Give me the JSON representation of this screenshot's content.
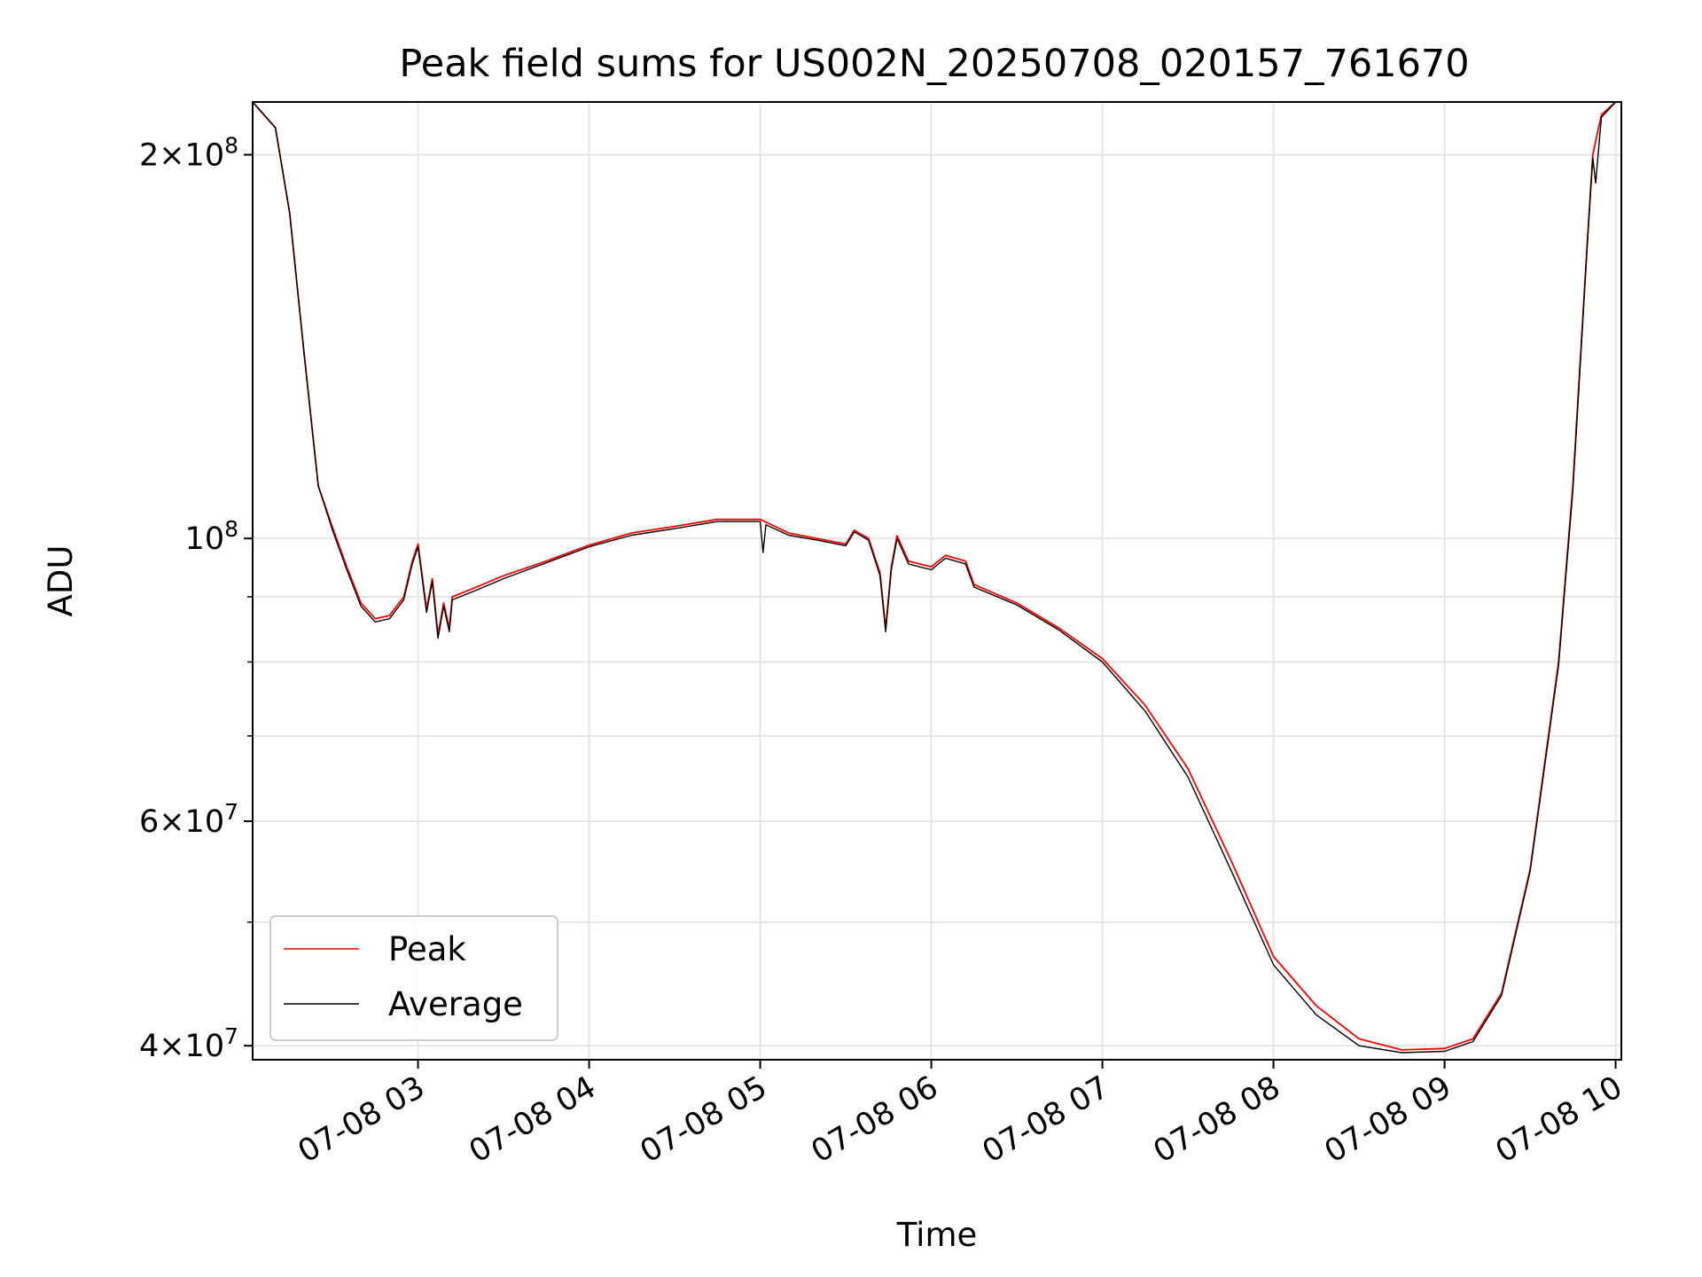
{
  "chart_data": {
    "type": "line",
    "title": "Peak field sums for US002N_20250708_020157_761670",
    "xlabel": "Time",
    "ylabel": "ADU",
    "x_unit": "date-hour",
    "xlim": [
      "07-08 02:02",
      "07-08 10:02"
    ],
    "ylim": [
      39000000,
      220000000
    ],
    "yscale": "log",
    "grid": true,
    "legend_position": "lower-left",
    "x_ticks": [
      {
        "value": "07-08 03:00",
        "label": "07-08 03"
      },
      {
        "value": "07-08 04:00",
        "label": "07-08 04"
      },
      {
        "value": "07-08 05:00",
        "label": "07-08 05"
      },
      {
        "value": "07-08 06:00",
        "label": "07-08 06"
      },
      {
        "value": "07-08 07:00",
        "label": "07-08 07"
      },
      {
        "value": "07-08 08:00",
        "label": "07-08 08"
      },
      {
        "value": "07-08 09:00",
        "label": "07-08 09"
      },
      {
        "value": "07-08 10:00",
        "label": "07-08 10"
      }
    ],
    "y_major_ticks": [
      {
        "value": 40000000,
        "mant": "4",
        "exp": "7"
      },
      {
        "value": 60000000,
        "mant": "6",
        "exp": "7"
      },
      {
        "value": 100000000,
        "mant": "",
        "exp": "8"
      },
      {
        "value": 200000000,
        "mant": "2",
        "exp": "8"
      }
    ],
    "y_minor_grid": [
      50000000,
      70000000,
      80000000,
      90000000
    ],
    "series": [
      {
        "name": "Peak",
        "color": "#ff0000",
        "points": [
          [
            "07-08 02:02",
            220000000
          ],
          [
            "07-08 02:10",
            210000000
          ],
          [
            "07-08 02:15",
            180000000
          ],
          [
            "07-08 02:20",
            140000000
          ],
          [
            "07-08 02:25",
            110000000
          ],
          [
            "07-08 02:30",
            102000000
          ],
          [
            "07-08 02:35",
            95000000
          ],
          [
            "07-08 02:40",
            89000000
          ],
          [
            "07-08 02:45",
            86500000
          ],
          [
            "07-08 02:50",
            87000000
          ],
          [
            "07-08 02:55",
            90000000
          ],
          [
            "07-08 02:58",
            96000000
          ],
          [
            "07-08 03:00",
            99000000
          ],
          [
            "07-08 03:03",
            88000000
          ],
          [
            "07-08 03:05",
            93000000
          ],
          [
            "07-08 03:07",
            84000000
          ],
          [
            "07-08 03:09",
            89000000
          ],
          [
            "07-08 03:11",
            85000000
          ],
          [
            "07-08 03:12",
            90000000
          ],
          [
            "07-08 03:20",
            91500000
          ],
          [
            "07-08 03:30",
            93500000
          ],
          [
            "07-08 03:45",
            96000000
          ],
          [
            "07-08 04:00",
            98800000
          ],
          [
            "07-08 04:15",
            101000000
          ],
          [
            "07-08 04:30",
            102200000
          ],
          [
            "07-08 04:45",
            103500000
          ],
          [
            "07-08 05:00",
            103500000
          ],
          [
            "07-08 05:10",
            101000000
          ],
          [
            "07-08 05:20",
            100000000
          ],
          [
            "07-08 05:30",
            99000000
          ],
          [
            "07-08 05:33",
            101500000
          ],
          [
            "07-08 05:38",
            100000000
          ],
          [
            "07-08 05:42",
            94000000
          ],
          [
            "07-08 05:44",
            85000000
          ],
          [
            "07-08 05:46",
            95000000
          ],
          [
            "07-08 05:48",
            100500000
          ],
          [
            "07-08 05:52",
            96000000
          ],
          [
            "07-08 06:00",
            95000000
          ],
          [
            "07-08 06:05",
            97000000
          ],
          [
            "07-08 06:12",
            96000000
          ],
          [
            "07-08 06:15",
            92000000
          ],
          [
            "07-08 06:30",
            89000000
          ],
          [
            "07-08 06:45",
            85000000
          ],
          [
            "07-08 07:00",
            80500000
          ],
          [
            "07-08 07:15",
            74000000
          ],
          [
            "07-08 07:30",
            66000000
          ],
          [
            "07-08 07:45",
            56000000
          ],
          [
            "07-08 08:00",
            47000000
          ],
          [
            "07-08 08:15",
            43000000
          ],
          [
            "07-08 08:30",
            40500000
          ],
          [
            "07-08 08:45",
            39700000
          ],
          [
            "07-08 09:00",
            39800000
          ],
          [
            "07-08 09:10",
            40500000
          ],
          [
            "07-08 09:20",
            44000000
          ],
          [
            "07-08 09:30",
            55000000
          ],
          [
            "07-08 09:40",
            80000000
          ],
          [
            "07-08 09:45",
            110000000
          ],
          [
            "07-08 09:50",
            170000000
          ],
          [
            "07-08 09:52",
            200000000
          ],
          [
            "07-08 09:55",
            215000000
          ],
          [
            "07-08 10:00",
            220000000
          ]
        ]
      },
      {
        "name": "Average",
        "color": "#000000",
        "points": [
          [
            "07-08 02:02",
            220000000
          ],
          [
            "07-08 02:10",
            210000000
          ],
          [
            "07-08 02:15",
            180000000
          ],
          [
            "07-08 02:20",
            140000000
          ],
          [
            "07-08 02:25",
            110000000
          ],
          [
            "07-08 02:30",
            101500000
          ],
          [
            "07-08 02:35",
            94500000
          ],
          [
            "07-08 02:40",
            88500000
          ],
          [
            "07-08 02:45",
            86000000
          ],
          [
            "07-08 02:50",
            86500000
          ],
          [
            "07-08 02:55",
            89500000
          ],
          [
            "07-08 02:58",
            95500000
          ],
          [
            "07-08 03:00",
            98500000
          ],
          [
            "07-08 03:03",
            87500000
          ],
          [
            "07-08 03:05",
            92500000
          ],
          [
            "07-08 03:07",
            83500000
          ],
          [
            "07-08 03:09",
            88500000
          ],
          [
            "07-08 03:11",
            84500000
          ],
          [
            "07-08 03:12",
            89500000
          ],
          [
            "07-08 03:20",
            91000000
          ],
          [
            "07-08 03:30",
            93000000
          ],
          [
            "07-08 03:45",
            95700000
          ],
          [
            "07-08 04:00",
            98500000
          ],
          [
            "07-08 04:15",
            100600000
          ],
          [
            "07-08 04:30",
            101800000
          ],
          [
            "07-08 04:45",
            103100000
          ],
          [
            "07-08 05:00",
            103100000
          ],
          [
            "07-08 05:01",
            97500000
          ],
          [
            "07-08 05:02",
            102500000
          ],
          [
            "07-08 05:10",
            100600000
          ],
          [
            "07-08 05:20",
            99700000
          ],
          [
            "07-08 05:30",
            98700000
          ],
          [
            "07-08 05:33",
            101200000
          ],
          [
            "07-08 05:38",
            99700000
          ],
          [
            "07-08 05:42",
            93500000
          ],
          [
            "07-08 05:44",
            84500000
          ],
          [
            "07-08 05:46",
            94500000
          ],
          [
            "07-08 05:48",
            100000000
          ],
          [
            "07-08 05:52",
            95500000
          ],
          [
            "07-08 06:00",
            94500000
          ],
          [
            "07-08 06:05",
            96500000
          ],
          [
            "07-08 06:12",
            95500000
          ],
          [
            "07-08 06:15",
            91600000
          ],
          [
            "07-08 06:30",
            88700000
          ],
          [
            "07-08 06:45",
            84700000
          ],
          [
            "07-08 07:00",
            80000000
          ],
          [
            "07-08 07:15",
            73200000
          ],
          [
            "07-08 07:30",
            65000000
          ],
          [
            "07-08 07:45",
            55000000
          ],
          [
            "07-08 08:00",
            46300000
          ],
          [
            "07-08 08:15",
            42300000
          ],
          [
            "07-08 08:30",
            40000000
          ],
          [
            "07-08 08:45",
            39500000
          ],
          [
            "07-08 09:00",
            39600000
          ],
          [
            "07-08 09:10",
            40300000
          ],
          [
            "07-08 09:20",
            43800000
          ],
          [
            "07-08 09:30",
            54800000
          ],
          [
            "07-08 09:40",
            79500000
          ],
          [
            "07-08 09:45",
            109000000
          ],
          [
            "07-08 09:50",
            169000000
          ],
          [
            "07-08 09:52",
            199000000
          ],
          [
            "07-08 09:53",
            190000000
          ],
          [
            "07-08 09:55",
            214000000
          ],
          [
            "07-08 10:00",
            220000000
          ]
        ]
      }
    ]
  }
}
